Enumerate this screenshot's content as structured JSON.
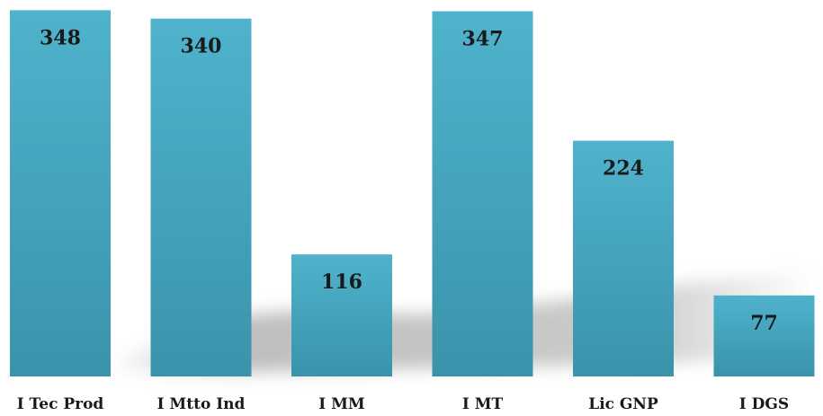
{
  "chart_data": {
    "type": "bar",
    "categories": [
      "I Tec Prod",
      "I Mtto Ind",
      "I MM",
      "I MT",
      "Lic GNP",
      "I DGS"
    ],
    "values": [
      348,
      340,
      116,
      347,
      224,
      77
    ],
    "data_labels": [
      "348",
      "340",
      "116",
      "347",
      "224",
      "77"
    ],
    "title": "",
    "xlabel": "",
    "ylabel": "",
    "ylim": [
      0,
      350
    ],
    "grid": false,
    "legend": "none",
    "colors": {
      "bar_top": "#4fb3cc",
      "bar_bottom": "#3a93ab",
      "shadow": "#8a8a8a"
    }
  }
}
